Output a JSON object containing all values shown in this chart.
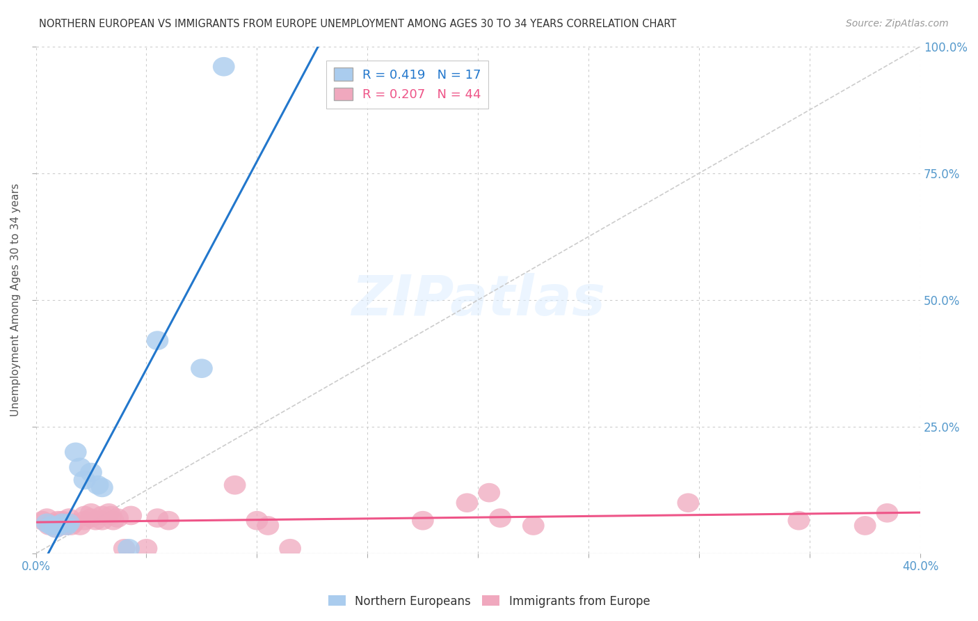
{
  "title": "NORTHERN EUROPEAN VS IMMIGRANTS FROM EUROPE UNEMPLOYMENT AMONG AGES 30 TO 34 YEARS CORRELATION CHART",
  "source": "Source: ZipAtlas.com",
  "ylabel": "Unemployment Among Ages 30 to 34 years",
  "xlim": [
    0,
    0.4
  ],
  "ylim": [
    0,
    1.0
  ],
  "background_color": "#ffffff",
  "grid_color": "#cccccc",
  "watermark_text": "ZIPatlas",
  "blue_R": 0.419,
  "blue_N": 17,
  "pink_R": 0.207,
  "pink_N": 44,
  "blue_color": "#aaccee",
  "pink_color": "#f0a8be",
  "blue_line_color": "#2277cc",
  "pink_line_color": "#ee5588",
  "diag_color": "#cccccc",
  "blue_scatter": [
    [
      0.005,
      0.06
    ],
    [
      0.007,
      0.055
    ],
    [
      0.009,
      0.05
    ],
    [
      0.01,
      0.055
    ],
    [
      0.012,
      0.06
    ],
    [
      0.014,
      0.055
    ],
    [
      0.015,
      0.06
    ],
    [
      0.018,
      0.2
    ],
    [
      0.02,
      0.17
    ],
    [
      0.022,
      0.145
    ],
    [
      0.025,
      0.16
    ],
    [
      0.028,
      0.135
    ],
    [
      0.03,
      0.13
    ],
    [
      0.042,
      0.01
    ],
    [
      0.055,
      0.42
    ],
    [
      0.075,
      0.365
    ],
    [
      0.085,
      0.96
    ]
  ],
  "pink_scatter": [
    [
      0.003,
      0.065
    ],
    [
      0.005,
      0.07
    ],
    [
      0.006,
      0.055
    ],
    [
      0.007,
      0.06
    ],
    [
      0.008,
      0.055
    ],
    [
      0.009,
      0.05
    ],
    [
      0.01,
      0.065
    ],
    [
      0.01,
      0.055
    ],
    [
      0.012,
      0.065
    ],
    [
      0.013,
      0.06
    ],
    [
      0.013,
      0.055
    ],
    [
      0.015,
      0.07
    ],
    [
      0.016,
      0.055
    ],
    [
      0.017,
      0.06
    ],
    [
      0.02,
      0.055
    ],
    [
      0.022,
      0.075
    ],
    [
      0.022,
      0.065
    ],
    [
      0.025,
      0.08
    ],
    [
      0.025,
      0.07
    ],
    [
      0.027,
      0.065
    ],
    [
      0.03,
      0.075
    ],
    [
      0.03,
      0.065
    ],
    [
      0.033,
      0.08
    ],
    [
      0.034,
      0.075
    ],
    [
      0.035,
      0.065
    ],
    [
      0.037,
      0.07
    ],
    [
      0.04,
      0.01
    ],
    [
      0.043,
      0.075
    ],
    [
      0.05,
      0.01
    ],
    [
      0.055,
      0.07
    ],
    [
      0.06,
      0.065
    ],
    [
      0.09,
      0.135
    ],
    [
      0.1,
      0.065
    ],
    [
      0.105,
      0.055
    ],
    [
      0.115,
      0.01
    ],
    [
      0.175,
      0.065
    ],
    [
      0.195,
      0.1
    ],
    [
      0.205,
      0.12
    ],
    [
      0.21,
      0.07
    ],
    [
      0.225,
      0.055
    ],
    [
      0.295,
      0.1
    ],
    [
      0.345,
      0.065
    ],
    [
      0.375,
      0.055
    ],
    [
      0.385,
      0.08
    ]
  ],
  "blue_line_x": [
    0.0,
    0.165
  ],
  "pink_line_x": [
    0.0,
    0.4
  ],
  "diag_line": [
    [
      0.0,
      0.0
    ],
    [
      0.4,
      1.0
    ]
  ]
}
